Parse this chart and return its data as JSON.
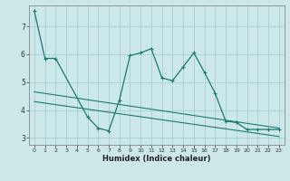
{
  "xlabel": "Humidex (Indice chaleur)",
  "bg_color": "#cce8e8",
  "grid_color": "#aad4d4",
  "line_color": "#1a7a6e",
  "xlim": [
    -0.5,
    23.5
  ],
  "ylim": [
    2.75,
    7.75
  ],
  "x_ticks": [
    0,
    1,
    2,
    3,
    4,
    5,
    6,
    7,
    8,
    9,
    10,
    11,
    12,
    13,
    14,
    15,
    16,
    17,
    18,
    19,
    20,
    21,
    22,
    23
  ],
  "y_ticks": [
    3,
    4,
    5,
    6,
    7
  ],
  "series1_x": [
    0,
    1,
    2,
    5,
    6,
    7,
    8,
    9,
    10,
    11,
    12,
    13,
    14,
    15,
    16,
    17,
    18,
    19,
    20,
    21,
    22,
    23
  ],
  "series1_y": [
    7.55,
    5.85,
    5.85,
    3.75,
    3.35,
    3.25,
    4.35,
    5.95,
    6.05,
    6.2,
    5.15,
    5.05,
    5.55,
    6.05,
    5.35,
    4.6,
    3.6,
    3.55,
    3.3,
    3.3,
    3.3,
    3.3
  ],
  "series2_x": [
    0,
    23
  ],
  "series2_y": [
    4.65,
    3.35
  ],
  "series3_x": [
    0,
    23
  ],
  "series3_y": [
    4.3,
    3.05
  ]
}
